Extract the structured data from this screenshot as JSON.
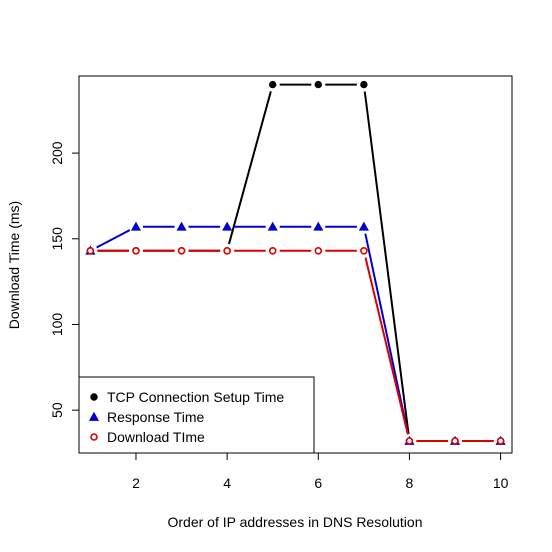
{
  "chart_data": {
    "type": "line",
    "xlabel": "Order of IP addresses in DNS Resolution",
    "ylabel": "Download Time (ms)",
    "xlim": [
      0.75,
      10.25
    ],
    "ylim": [
      25,
      245
    ],
    "xticks": [
      2,
      4,
      6,
      8,
      10
    ],
    "yticks": [
      50,
      100,
      150,
      200
    ],
    "grid": false,
    "legend_position": "bottom-left",
    "x": [
      1,
      2,
      3,
      4,
      5,
      6,
      7,
      8,
      9,
      10
    ],
    "series": [
      {
        "name": "TCP Connection Setup Time",
        "color": "#000000",
        "marker": "filled-circle",
        "values": [
          143,
          143,
          143,
          143,
          240,
          240,
          240,
          32,
          32,
          32
        ]
      },
      {
        "name": "Response Time",
        "color": "#0000cc",
        "marker": "filled-triangle",
        "values": [
          143,
          157,
          157,
          157,
          157,
          157,
          157,
          32,
          32,
          32
        ]
      },
      {
        "name": "Download TIme",
        "color": "#dd0000",
        "marker": "open-circle",
        "values": [
          143,
          143,
          143,
          143,
          143,
          143,
          143,
          32,
          32,
          32
        ]
      }
    ]
  }
}
